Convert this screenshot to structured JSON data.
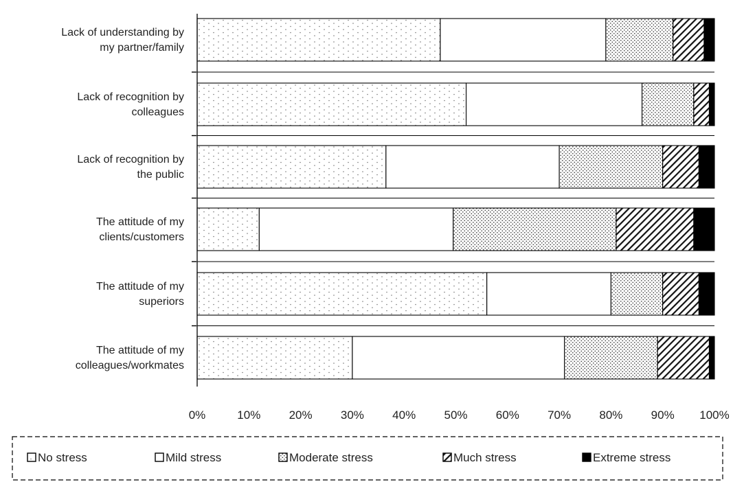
{
  "chart_data": {
    "type": "bar",
    "orientation": "horizontal",
    "stacked": true,
    "normalized_percent": true,
    "categories": [
      [
        "Lack of understanding by",
        "my partner/family"
      ],
      [
        "Lack of recognition by",
        "colleagues"
      ],
      [
        "Lack of recognition by",
        "the public"
      ],
      [
        "The attitude of my",
        "clients/customers"
      ],
      [
        "The attitude of my",
        "superiors"
      ],
      [
        "The attitude of my",
        "colleagues/workmates"
      ]
    ],
    "series": [
      {
        "name": "No stress",
        "values": [
          47,
          52,
          36.5,
          12,
          56,
          30
        ]
      },
      {
        "name": "Mild stress",
        "values": [
          32,
          34,
          33.5,
          37.5,
          24,
          41
        ]
      },
      {
        "name": "Moderate stress",
        "values": [
          13,
          10,
          20,
          31.5,
          10,
          18
        ]
      },
      {
        "name": "Much stress",
        "values": [
          6,
          3,
          7,
          15,
          7,
          10
        ]
      },
      {
        "name": "Extreme stress",
        "values": [
          2,
          1,
          3,
          4,
          3,
          1
        ]
      }
    ],
    "xlim": [
      0,
      100
    ],
    "x_ticks": [
      "0%",
      "10%",
      "20%",
      "30%",
      "40%",
      "50%",
      "60%",
      "70%",
      "80%",
      "90%",
      "100%"
    ],
    "title": "",
    "xlabel": "",
    "ylabel": "",
    "grid": false,
    "legend_position": "bottom"
  }
}
